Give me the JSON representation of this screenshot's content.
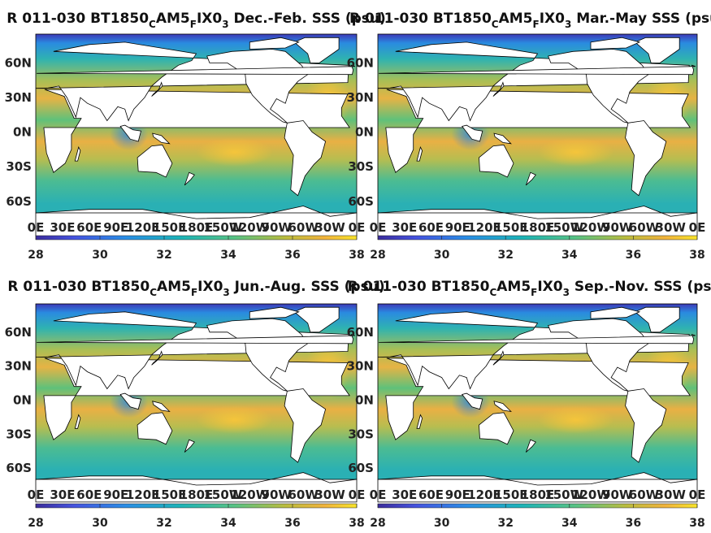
{
  "panels": [
    {
      "title_a": "R 011-030 BT1850",
      "sub1": "C",
      "title_b": "AM5",
      "sub2": "F",
      "title_c": "IX0",
      "sub3": "3",
      "title_d": " Dec.-Feb. SSS (psu)"
    },
    {
      "title_a": "R 011-030 BT1850",
      "sub1": "C",
      "title_b": "AM5",
      "sub2": "F",
      "title_c": "IX0",
      "sub3": "3",
      "title_d": " Mar.-May SSS (psu)"
    },
    {
      "title_a": "R 011-030 BT1850",
      "sub1": "C",
      "title_b": "AM5",
      "sub2": "F",
      "title_c": "IX0",
      "sub3": "3",
      "title_d": " Jun.-Aug. SSS (psu)"
    },
    {
      "title_a": "R 011-030 BT1850",
      "sub1": "C",
      "title_b": "AM5",
      "sub2": "F",
      "title_c": "IX0",
      "sub3": "3",
      "title_d": " Sep.-Nov. SSS (psu)"
    }
  ],
  "lat_labels": [
    "60N",
    "30N",
    "0N",
    "30S",
    "60S"
  ],
  "lon_labels": [
    "0E",
    "30E",
    "60E",
    "90E",
    "120E",
    "150E",
    "180E",
    "150W",
    "120W",
    "90W",
    "60W",
    "30W",
    "0E"
  ],
  "colorbar": {
    "ticks": [
      "28",
      "30",
      "32",
      "34",
      "36",
      "38"
    ],
    "min": 28,
    "max": 38
  },
  "colors": {
    "low": "#3a2a9a",
    "mid": "#1fb5a8",
    "high": "#f9d72e",
    "land": "#ffffff"
  }
}
